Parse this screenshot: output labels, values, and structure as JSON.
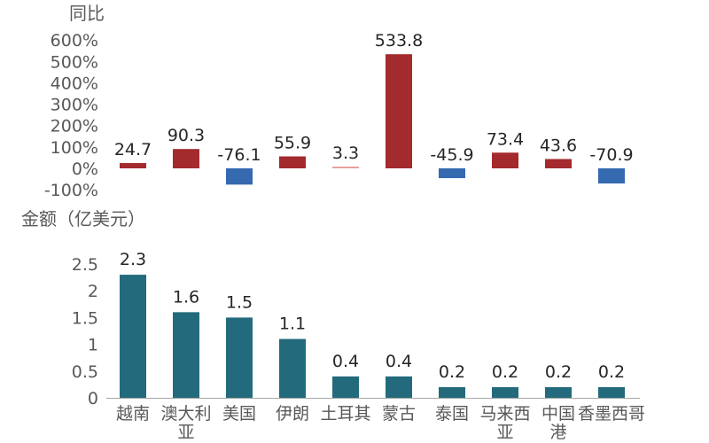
{
  "chart_data": [
    {
      "type": "bar",
      "ylabel": "同比",
      "categories": [
        "越南",
        "澳大利亚",
        "美国",
        "伊朗",
        "土耳其",
        "蒙古",
        "泰国",
        "马来西亚",
        "中国香港",
        "墨西哥"
      ],
      "values": [
        24.7,
        90.3,
        -76.1,
        55.9,
        3.3,
        533.8,
        -45.9,
        73.4,
        43.6,
        -70.9
      ],
      "data_labels": [
        "24.7",
        "90.3",
        "-76.1",
        "55.9",
        "3.3",
        "533.8",
        "-45.9",
        "73.4",
        "43.6",
        "-70.9"
      ],
      "yticks": [
        "600%",
        "500%",
        "400%",
        "300%",
        "200%",
        "100%",
        "0%",
        "-100%"
      ],
      "ytick_values": [
        600,
        500,
        400,
        300,
        200,
        100,
        0,
        -100
      ],
      "ylim": [
        -100,
        600
      ],
      "colors": {
        "positive": "#a32a2d",
        "negative": "#3569b0",
        "small_positive": "#e8a0a0"
      }
    },
    {
      "type": "bar",
      "ylabel": "金额（亿美元）",
      "categories": [
        "越南",
        "澳大利亚",
        "美国",
        "伊朗",
        "土耳其",
        "蒙古",
        "泰国",
        "马来西亚",
        "中国香港",
        "墨西哥"
      ],
      "category_lines": [
        [
          "越南"
        ],
        [
          "澳大利",
          "亚"
        ],
        [
          "美国"
        ],
        [
          "伊朗"
        ],
        [
          "土耳其"
        ],
        [
          "蒙古"
        ],
        [
          "泰国"
        ],
        [
          "马来西",
          "亚"
        ],
        [
          "中国",
          "港"
        ],
        [
          "香墨西哥"
        ]
      ],
      "values": [
        2.3,
        1.6,
        1.5,
        1.1,
        0.4,
        0.4,
        0.2,
        0.2,
        0.2,
        0.2
      ],
      "data_labels": [
        "2.3",
        "1.6",
        "1.5",
        "1.1",
        "0.4",
        "0.4",
        "0.2",
        "0.2",
        "0.2",
        "0.2"
      ],
      "yticks": [
        "2.5",
        "2",
        "1.5",
        "1",
        "0.5",
        "0"
      ],
      "ytick_values": [
        2.5,
        2,
        1.5,
        1,
        0.5,
        0
      ],
      "ylim": [
        0,
        2.5
      ],
      "colors": {
        "bar": "#236b7c",
        "axis": "#a6a6a6"
      }
    }
  ]
}
